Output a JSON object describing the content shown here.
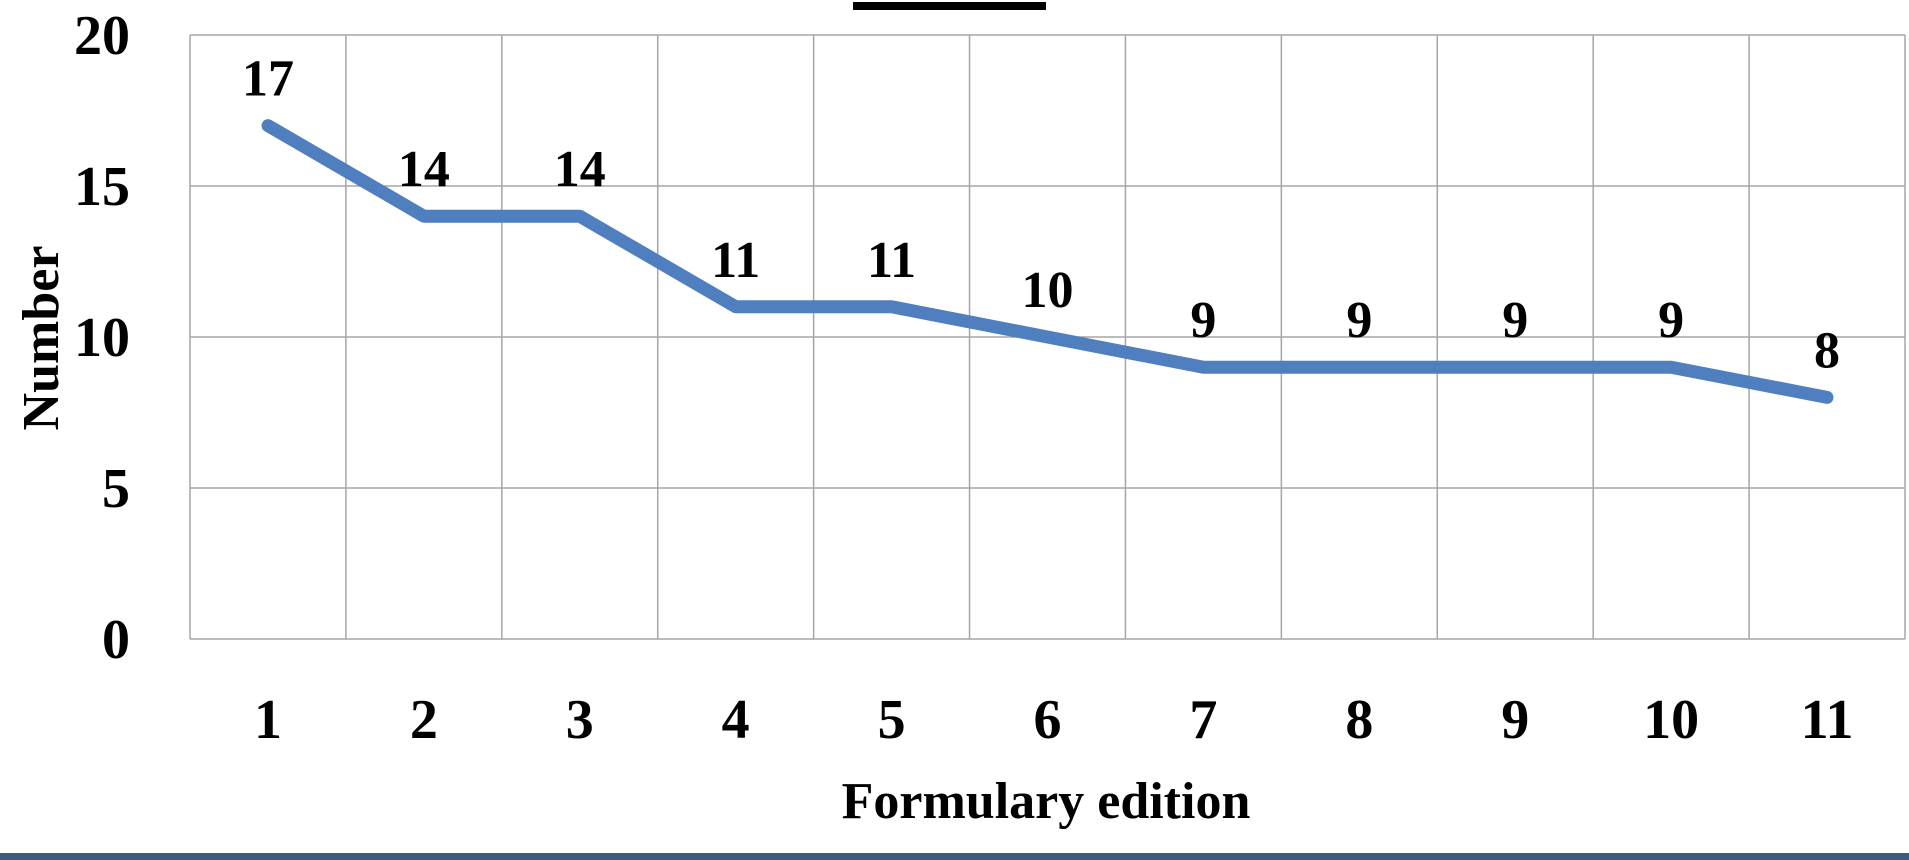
{
  "chart_data": {
    "type": "line",
    "title": "",
    "xlabel": "Formulary edition",
    "ylabel": "Number",
    "categories": [
      "1",
      "2",
      "3",
      "4",
      "5",
      "6",
      "7",
      "8",
      "9",
      "10",
      "11"
    ],
    "series": [
      {
        "values": [
          17,
          14,
          14,
          11,
          11,
          10,
          9,
          9,
          9,
          9,
          8
        ],
        "color": "#4f7fbf"
      }
    ],
    "data_labels": [
      "17",
      "14",
      "14",
      "11",
      "11",
      "10",
      "9",
      "9",
      "9",
      "9",
      "8"
    ],
    "y_ticks": [
      "0",
      "5",
      "10",
      "15",
      "20"
    ],
    "ylim": [
      0,
      20
    ],
    "grid": true,
    "legend": "none"
  },
  "colors": {
    "line": "#4f7fbf",
    "grid": "#a6a6a6",
    "bottom_bar": "#3d5a80"
  }
}
